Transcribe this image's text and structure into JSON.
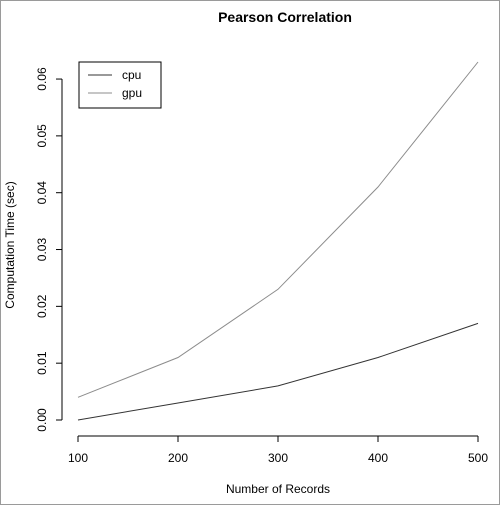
{
  "chart_data": {
    "type": "line",
    "title": "Pearson Correlation",
    "xlabel": "Number of Records",
    "ylabel": "Computation Time (sec)",
    "x": [
      100,
      200,
      300,
      400,
      500
    ],
    "xticks": [
      "100",
      "200",
      "300",
      "400",
      "500"
    ],
    "yticks": [
      "0.00",
      "0.01",
      "0.02",
      "0.03",
      "0.04",
      "0.05",
      "0.06"
    ],
    "xlim": [
      100,
      500
    ],
    "ylim": [
      0,
      0.063
    ],
    "grid": false,
    "legend_position": "top-left",
    "series": [
      {
        "name": "cpu",
        "color": "#333333",
        "values": [
          0.0,
          0.003,
          0.006,
          0.011,
          0.017
        ]
      },
      {
        "name": "gpu",
        "color": "#8c8c8c",
        "values": [
          0.004,
          0.011,
          0.023,
          0.041,
          0.063
        ]
      }
    ]
  }
}
